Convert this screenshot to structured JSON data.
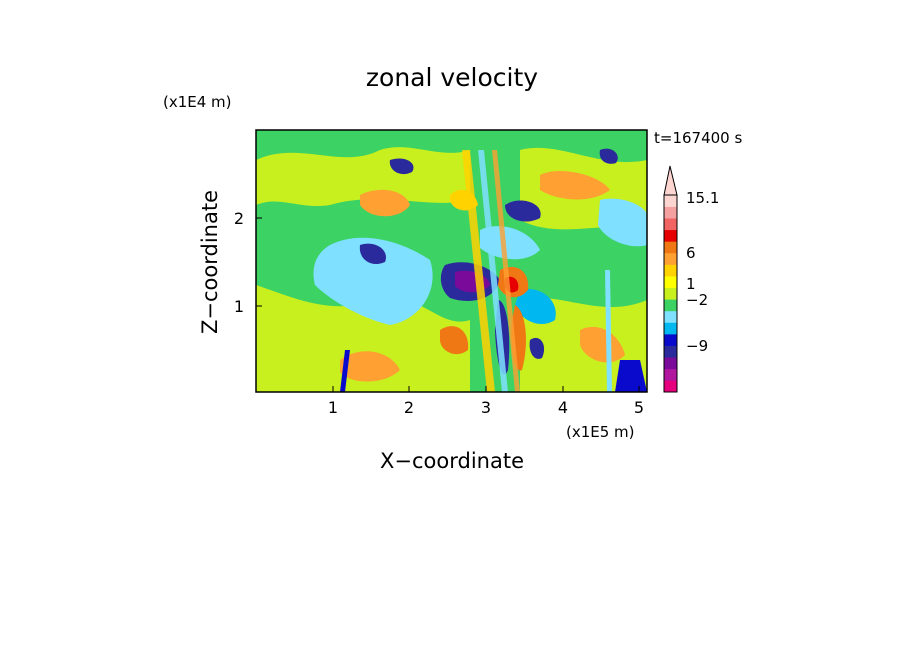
{
  "chart_data": {
    "type": "heatmap",
    "title": "zonal velocity",
    "xlabel": "X−coordinate",
    "ylabel": "Z−coordinate",
    "x_unit": "(x1E5 m)",
    "y_unit": "(x1E4 m)",
    "timestamp": "t=167400 s",
    "xlim": [
      0,
      5.1
    ],
    "ylim": [
      0,
      2.95
    ],
    "x_ticks": [
      "1",
      "2",
      "3",
      "4",
      "5"
    ],
    "y_ticks": [
      "1",
      "2"
    ],
    "colorbar": {
      "labels": [
        "15.1",
        "6",
        "1",
        "−2",
        "−9"
      ],
      "levels_colors": [
        "#e6007e",
        "#b0179e",
        "#7a0a9a",
        "#2a2a9c",
        "#0a0acc",
        "#00b7f0",
        "#7fe0ff",
        "#3cd264",
        "#c8f01e",
        "#ffff00",
        "#ffd200",
        "#ffa032",
        "#f07814",
        "#e60000",
        "#f06464",
        "#f5a0a0",
        "#fcd4d0"
      ]
    },
    "features": [
      {
        "kind": "strong-negative",
        "x": 2.85,
        "z": 1.2
      },
      {
        "kind": "strong-positive",
        "x": 3.3,
        "z": 1.2
      },
      {
        "kind": "negative",
        "x": 1.9,
        "z": 1.45
      },
      {
        "kind": "negative",
        "x": 3.3,
        "z": 2.1
      },
      {
        "kind": "negative",
        "x": 3.6,
        "z": 0.6
      }
    ]
  }
}
